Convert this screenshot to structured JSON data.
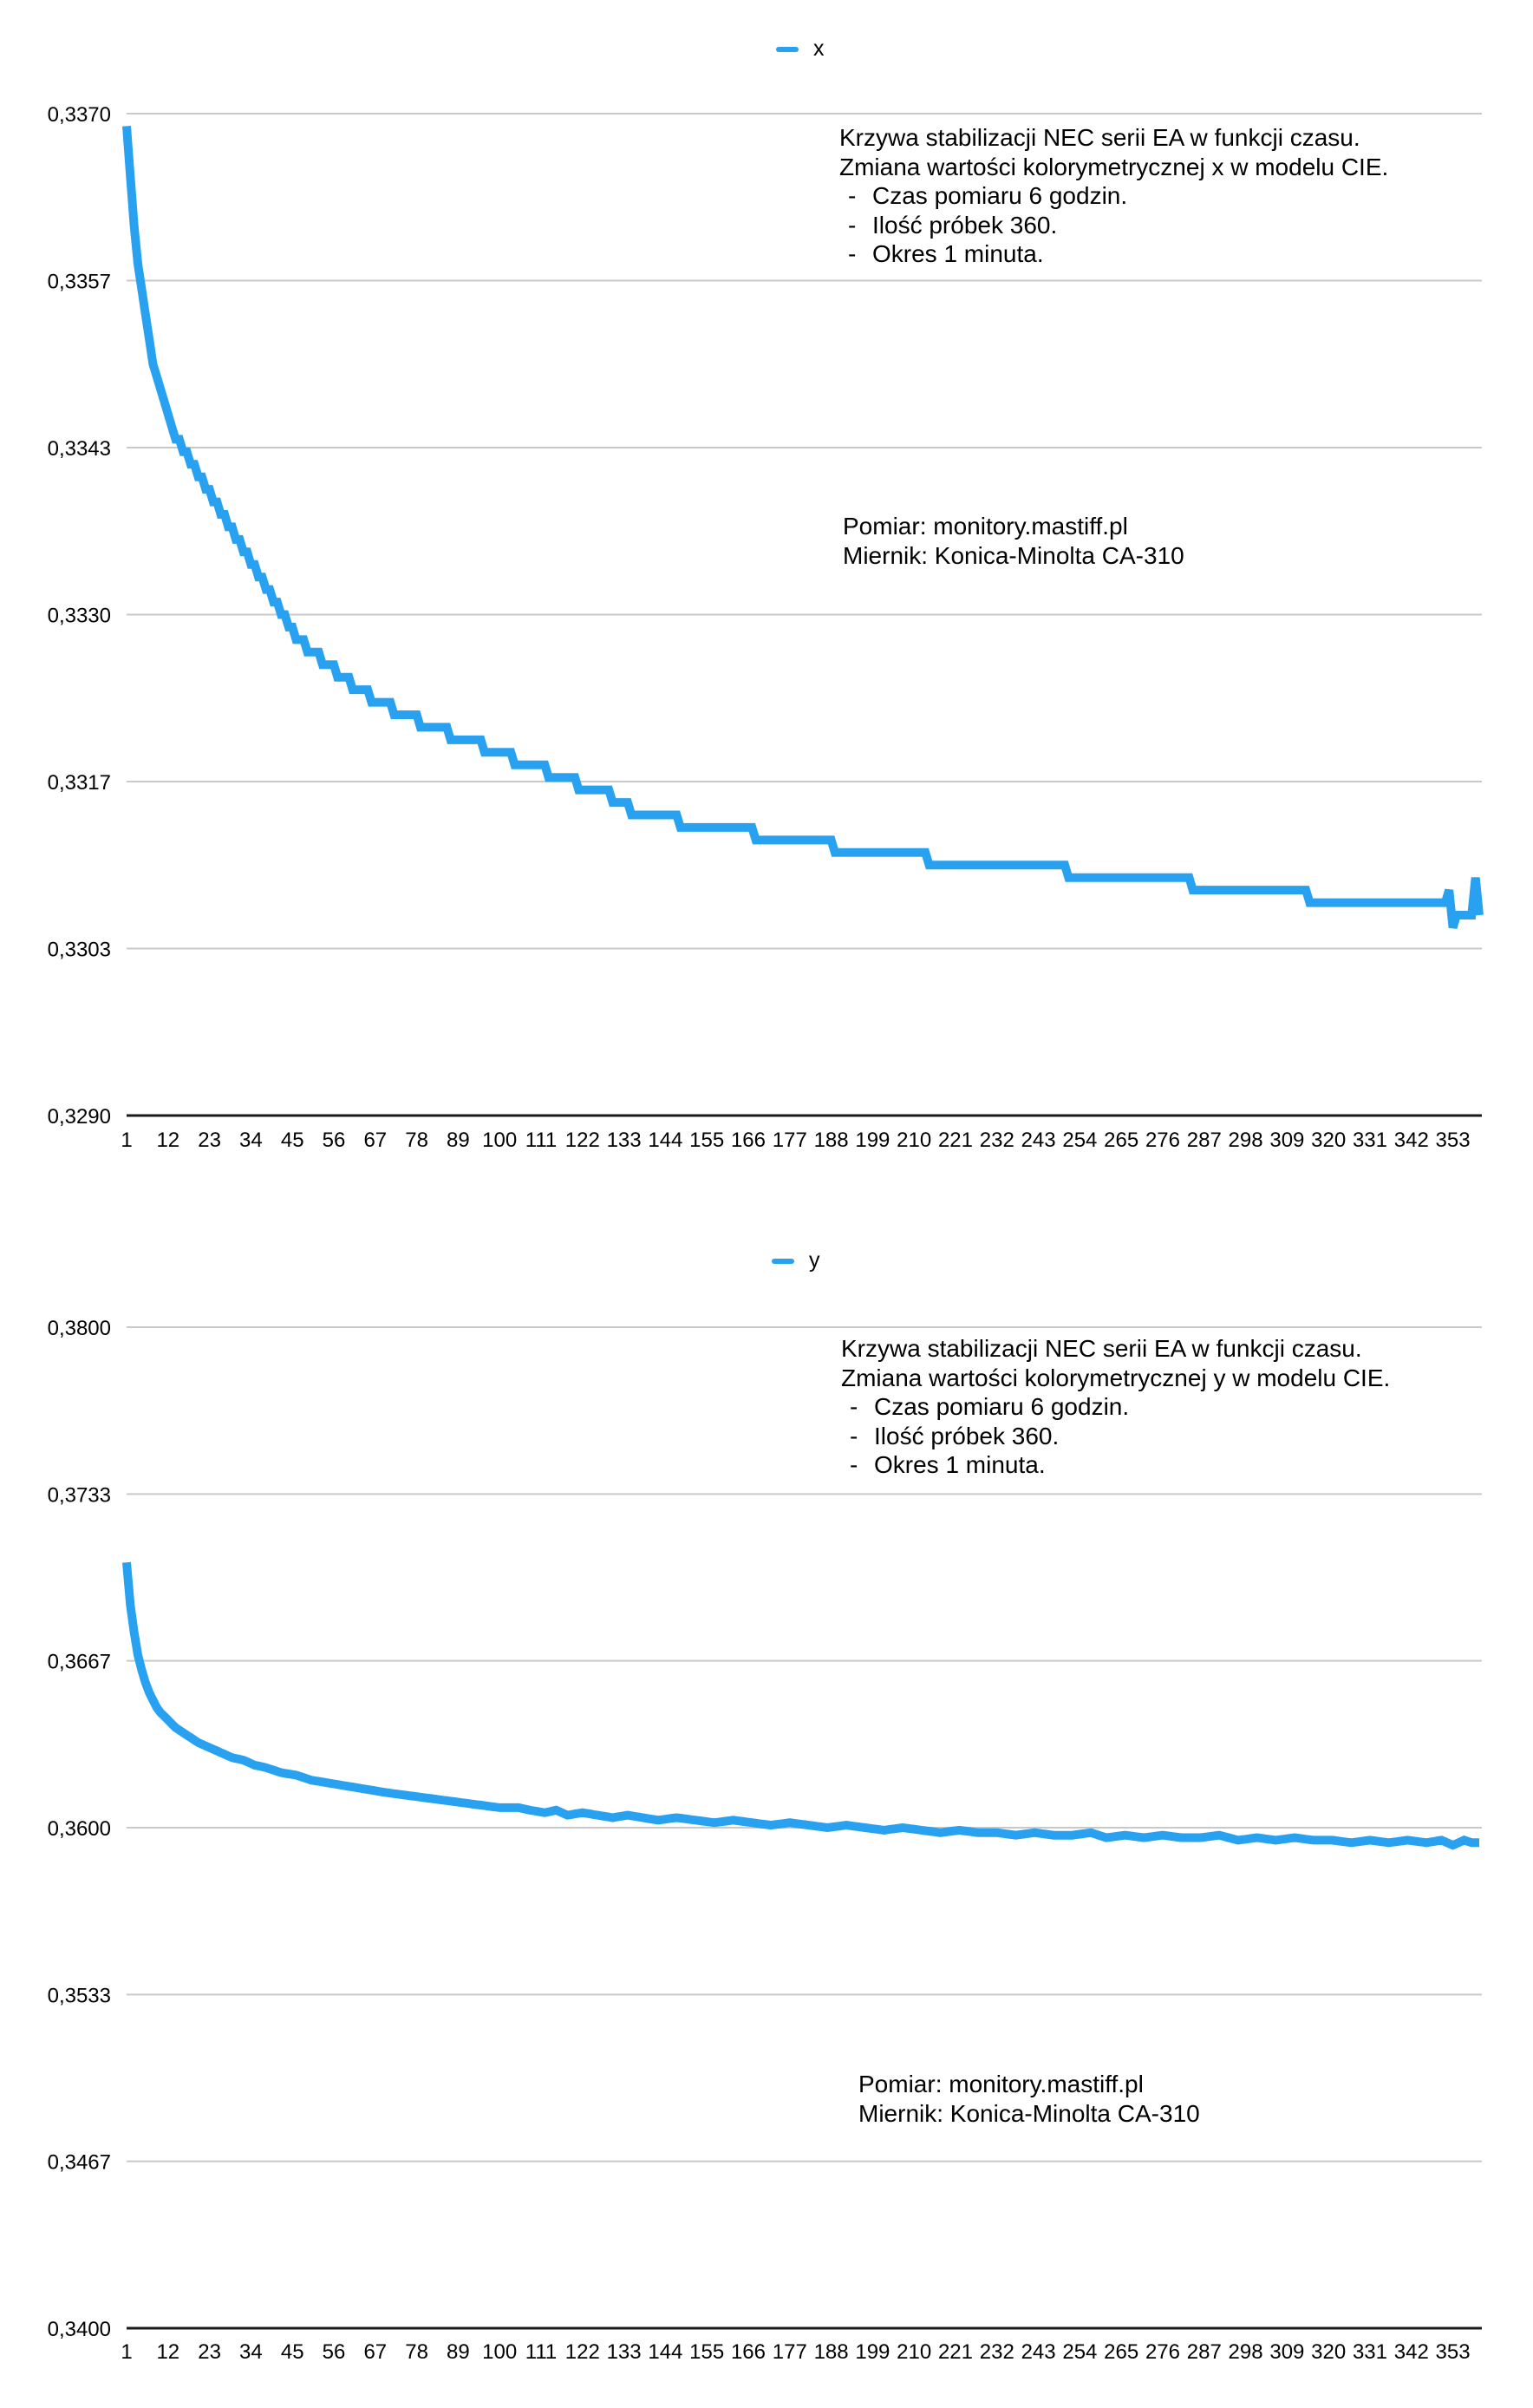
{
  "glyphs": {
    "bullet_dash": "-"
  },
  "chart_data": [
    {
      "type": "line",
      "series_name": "x",
      "legend": {
        "label": "x",
        "color": "#29A1F1"
      },
      "annotation": {
        "title_lines": [
          "Krzywa stabilizacji NEC serii EA w funkcji czasu.",
          "Zmiana wartości kolorymetrycznej x w modelu CIE."
        ],
        "bullets": [
          "Czas pomiaru 6 godzin.",
          "Ilość próbek 360.",
          "Okres 1 minuta."
        ]
      },
      "source_lines": [
        "Pomiar: monitory.mastiff.pl",
        "Miernik: Konica-Minolta CA-310"
      ],
      "xlim": [
        1,
        360
      ],
      "ylim": [
        0.329,
        0.337
      ],
      "grid": true,
      "legend_position": "top-center",
      "y_ticks": [
        {
          "v": 0.337,
          "label": "0,3370"
        },
        {
          "v": 0.3357,
          "label": "0,3357"
        },
        {
          "v": 0.3343,
          "label": "0,3343"
        },
        {
          "v": 0.333,
          "label": "0,3330"
        },
        {
          "v": 0.3317,
          "label": "0,3317"
        },
        {
          "v": 0.3303,
          "label": "0,3303"
        },
        {
          "v": 0.329,
          "label": "0,3290"
        }
      ],
      "x_ticks": [
        1,
        12,
        23,
        34,
        45,
        56,
        67,
        78,
        89,
        100,
        111,
        122,
        133,
        144,
        155,
        166,
        177,
        188,
        199,
        210,
        221,
        232,
        243,
        254,
        265,
        276,
        287,
        298,
        309,
        320,
        331,
        342,
        353
      ],
      "series_steps": [
        [
          1,
          1,
          0.3369
        ],
        [
          2,
          2,
          0.3365
        ],
        [
          3,
          3,
          0.3361
        ],
        [
          4,
          4,
          0.3358
        ],
        [
          5,
          5,
          0.3356
        ],
        [
          6,
          6,
          0.3354
        ],
        [
          7,
          7,
          0.3352
        ],
        [
          8,
          8,
          0.335
        ],
        [
          9,
          9,
          0.3349
        ],
        [
          10,
          10,
          0.3348
        ],
        [
          11,
          11,
          0.3347
        ],
        [
          12,
          12,
          0.3346
        ],
        [
          13,
          13,
          0.3345
        ],
        [
          14,
          15,
          0.3344
        ],
        [
          16,
          17,
          0.3343
        ],
        [
          18,
          19,
          0.3342
        ],
        [
          20,
          21,
          0.3341
        ],
        [
          22,
          23,
          0.334
        ],
        [
          24,
          25,
          0.3339
        ],
        [
          26,
          27,
          0.3338
        ],
        [
          28,
          29,
          0.3337
        ],
        [
          30,
          31,
          0.3336
        ],
        [
          32,
          33,
          0.3335
        ],
        [
          34,
          35,
          0.3334
        ],
        [
          36,
          37,
          0.3333
        ],
        [
          38,
          39,
          0.3332
        ],
        [
          40,
          41,
          0.3331
        ],
        [
          42,
          43,
          0.333
        ],
        [
          44,
          45,
          0.3329
        ],
        [
          46,
          48,
          0.3328
        ],
        [
          49,
          52,
          0.3327
        ],
        [
          53,
          56,
          0.3326
        ],
        [
          57,
          60,
          0.3325
        ],
        [
          61,
          65,
          0.3324
        ],
        [
          66,
          71,
          0.3323
        ],
        [
          72,
          78,
          0.3322
        ],
        [
          79,
          86,
          0.3321
        ],
        [
          87,
          95,
          0.332
        ],
        [
          96,
          103,
          0.3319
        ],
        [
          104,
          112,
          0.3318
        ],
        [
          113,
          120,
          0.3317
        ],
        [
          121,
          129,
          0.3316
        ],
        [
          130,
          134,
          0.3315
        ],
        [
          135,
          147,
          0.3314
        ],
        [
          148,
          167,
          0.3313
        ],
        [
          168,
          188,
          0.3312
        ],
        [
          189,
          213,
          0.3311
        ],
        [
          214,
          250,
          0.331
        ],
        [
          251,
          283,
          0.3309
        ],
        [
          284,
          314,
          0.3308
        ],
        [
          315,
          351,
          0.3307
        ],
        [
          352,
          352,
          0.3308
        ],
        [
          353,
          353,
          0.3305
        ],
        [
          354,
          358,
          0.3306
        ],
        [
          359,
          359,
          0.3309
        ],
        [
          360,
          360,
          0.3306
        ]
      ]
    },
    {
      "type": "line",
      "series_name": "y",
      "legend": {
        "label": "y",
        "color": "#29A1F1"
      },
      "annotation": {
        "title_lines": [
          "Krzywa stabilizacji NEC serii EA w funkcji czasu.",
          "Zmiana wartości kolorymetrycznej y w modelu CIE."
        ],
        "bullets": [
          "Czas pomiaru 6 godzin.",
          "Ilość próbek 360.",
          "Okres 1 minuta."
        ]
      },
      "source_lines": [
        "Pomiar: monitory.mastiff.pl",
        "Miernik: Konica-Minolta CA-310"
      ],
      "xlim": [
        1,
        360
      ],
      "ylim": [
        0.34,
        0.38
      ],
      "grid": true,
      "legend_position": "top-center",
      "y_ticks": [
        {
          "v": 0.38,
          "label": "0,3800"
        },
        {
          "v": 0.3733,
          "label": "0,3733"
        },
        {
          "v": 0.3667,
          "label": "0,3667"
        },
        {
          "v": 0.36,
          "label": "0,3600"
        },
        {
          "v": 0.3533,
          "label": "0,3533"
        },
        {
          "v": 0.3467,
          "label": "0,3467"
        },
        {
          "v": 0.34,
          "label": "0,3400"
        }
      ],
      "x_ticks": [
        1,
        12,
        23,
        34,
        45,
        56,
        67,
        78,
        89,
        100,
        111,
        122,
        133,
        144,
        155,
        166,
        177,
        188,
        199,
        210,
        221,
        232,
        243,
        254,
        265,
        276,
        287,
        298,
        309,
        320,
        331,
        342,
        353
      ],
      "series_breakpoints": [
        [
          1,
          0.3706
        ],
        [
          2,
          0.3689
        ],
        [
          3,
          0.3678
        ],
        [
          4,
          0.3669
        ],
        [
          5,
          0.3663
        ],
        [
          6,
          0.3658
        ],
        [
          7,
          0.3654
        ],
        [
          8,
          0.3651
        ],
        [
          9,
          0.3648
        ],
        [
          10,
          0.3646
        ],
        [
          12,
          0.3643
        ],
        [
          14,
          0.364
        ],
        [
          16,
          0.3638
        ],
        [
          18,
          0.3636
        ],
        [
          20,
          0.3634
        ],
        [
          23,
          0.3632
        ],
        [
          26,
          0.363
        ],
        [
          29,
          0.3628
        ],
        [
          32,
          0.3627
        ],
        [
          35,
          0.3625
        ],
        [
          38,
          0.3624
        ],
        [
          42,
          0.3622
        ],
        [
          46,
          0.3621
        ],
        [
          50,
          0.3619
        ],
        [
          54,
          0.3618
        ],
        [
          58,
          0.3617
        ],
        [
          62,
          0.3616
        ],
        [
          66,
          0.3615
        ],
        [
          70,
          0.3614
        ],
        [
          75,
          0.3613
        ],
        [
          80,
          0.3612
        ],
        [
          85,
          0.3611
        ],
        [
          90,
          0.361
        ],
        [
          95,
          0.3609
        ],
        [
          100,
          0.3608
        ],
        [
          105,
          0.3608
        ],
        [
          108,
          0.3607
        ],
        [
          112,
          0.3606
        ],
        [
          115,
          0.3607
        ],
        [
          118,
          0.3605
        ],
        [
          122,
          0.3606
        ],
        [
          126,
          0.3605
        ],
        [
          130,
          0.3604
        ],
        [
          134,
          0.3605
        ],
        [
          138,
          0.3604
        ],
        [
          142,
          0.3603
        ],
        [
          147,
          0.3604
        ],
        [
          152,
          0.3603
        ],
        [
          157,
          0.3602
        ],
        [
          162,
          0.3603
        ],
        [
          167,
          0.3602
        ],
        [
          172,
          0.3601
        ],
        [
          177,
          0.3602
        ],
        [
          182,
          0.3601
        ],
        [
          187,
          0.36
        ],
        [
          192,
          0.3601
        ],
        [
          197,
          0.36
        ],
        [
          202,
          0.3599
        ],
        [
          207,
          0.36
        ],
        [
          212,
          0.3599
        ],
        [
          217,
          0.3598
        ],
        [
          222,
          0.3599
        ],
        [
          227,
          0.3598
        ],
        [
          232,
          0.3598
        ],
        [
          237,
          0.3597
        ],
        [
          242,
          0.3598
        ],
        [
          247,
          0.3597
        ],
        [
          252,
          0.3597
        ],
        [
          257,
          0.3598
        ],
        [
          261,
          0.3596
        ],
        [
          266,
          0.3597
        ],
        [
          271,
          0.3596
        ],
        [
          276,
          0.3597
        ],
        [
          281,
          0.3596
        ],
        [
          286,
          0.3596
        ],
        [
          291,
          0.3597
        ],
        [
          296,
          0.3595
        ],
        [
          301,
          0.3596
        ],
        [
          306,
          0.3595
        ],
        [
          311,
          0.3596
        ],
        [
          316,
          0.3595
        ],
        [
          321,
          0.3595
        ],
        [
          326,
          0.3594
        ],
        [
          331,
          0.3595
        ],
        [
          336,
          0.3594
        ],
        [
          341,
          0.3595
        ],
        [
          346,
          0.3594
        ],
        [
          350,
          0.3595
        ],
        [
          353,
          0.3593
        ],
        [
          356,
          0.3595
        ],
        [
          358,
          0.3594
        ],
        [
          360,
          0.3594
        ]
      ]
    }
  ]
}
